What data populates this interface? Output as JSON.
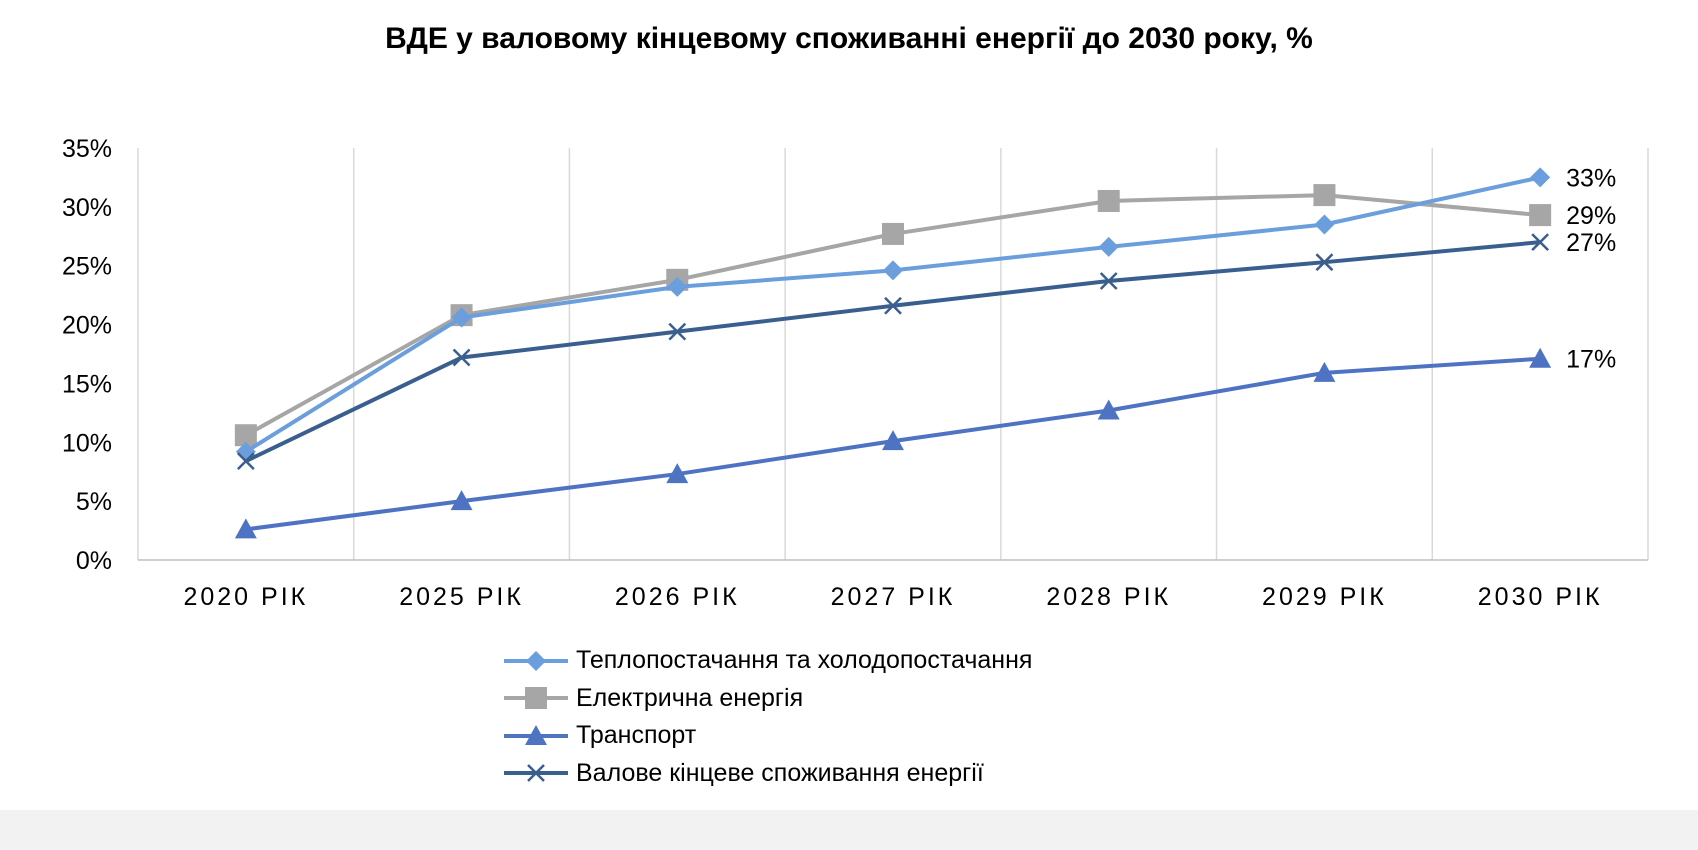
{
  "chart_data": {
    "type": "line",
    "title": "ВДЕ у валовому кінцевому споживанні енергії до 2030 року, %",
    "categories": [
      "2020 РІК",
      "2025 РІК",
      "2026 РІК",
      "2027 РІК",
      "2028 РІК",
      "2029 РІК",
      "2030 РІК"
    ],
    "ylim": [
      0,
      35
    ],
    "yticks": [
      "0%",
      "5%",
      "10%",
      "15%",
      "20%",
      "25%",
      "30%",
      "35%"
    ],
    "grid": "vertical",
    "legend_position": "bottom",
    "series": [
      {
        "name": "Теплопостачання та холодопостачання",
        "values": [
          9.2,
          20.6,
          23.2,
          24.6,
          26.6,
          28.5,
          32.5
        ],
        "marker": "diamond",
        "color": "#6a9edc",
        "end_label": "33%"
      },
      {
        "name": "Електрична енергія",
        "values": [
          10.6,
          20.8,
          23.8,
          27.7,
          30.5,
          31.0,
          29.3
        ],
        "marker": "square",
        "color": "#a6a6a6",
        "end_label": "29%"
      },
      {
        "name": "Транспорт",
        "values": [
          2.6,
          5.0,
          7.3,
          10.1,
          12.7,
          15.9,
          17.1
        ],
        "marker": "triangle",
        "color": "#4f73c3",
        "end_label": "17%"
      },
      {
        "name": "Валове кінцеве споживання енергії",
        "values": [
          8.4,
          17.2,
          19.4,
          21.6,
          23.7,
          25.3,
          27.0
        ],
        "marker": "x",
        "color": "#3a5f8f",
        "end_label": "27%"
      }
    ]
  }
}
